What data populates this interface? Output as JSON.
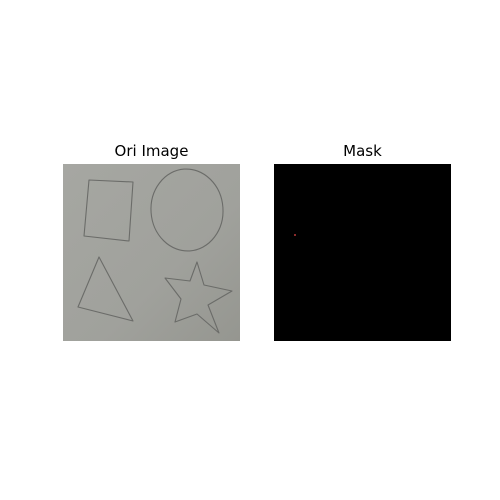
{
  "figure": {
    "panels": [
      {
        "title": "Ori Image",
        "background_color": "#a2a39e",
        "stroke_color": "#6b6c69",
        "shapes": [
          "rectangle",
          "ellipse",
          "triangle",
          "star"
        ]
      },
      {
        "title": "Mask",
        "background_color": "#000000",
        "marker_color": "#8b2a2a"
      }
    ]
  }
}
